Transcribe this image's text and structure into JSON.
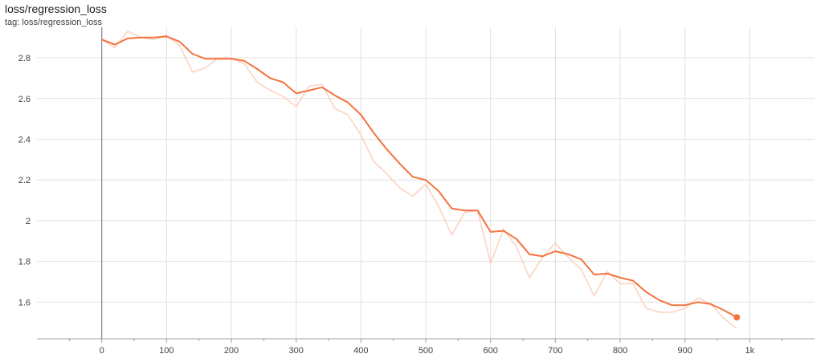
{
  "header": {
    "title": "loss/regression_loss",
    "tag": "tag: loss/regression_loss"
  },
  "colors": {
    "smoothed": "#f4733e",
    "raw": "#fbd3c3",
    "grid": "#e0e0e0",
    "axis": "#9e9e9e",
    "zero_line": "#888888"
  },
  "chart_data": {
    "type": "line",
    "title": "loss/regression_loss",
    "xlabel": "",
    "ylabel": "",
    "xlim": [
      -100,
      1100
    ],
    "ylim": [
      1.42,
      2.95
    ],
    "x_ticks": [
      0,
      100,
      200,
      300,
      400,
      500,
      600,
      700,
      800,
      900,
      1000
    ],
    "x_tick_labels": [
      "0",
      "100",
      "200",
      "300",
      "400",
      "500",
      "600",
      "700",
      "800",
      "900",
      "1k"
    ],
    "y_ticks": [
      1.6,
      1.8,
      2.0,
      2.2,
      2.4,
      2.6,
      2.8
    ],
    "y_tick_labels": [
      "1.6",
      "1.8",
      "2",
      "2.2",
      "2.4",
      "2.6",
      "2.8"
    ],
    "grid": true,
    "series": [
      {
        "role": "raw",
        "x": [
          0,
          20,
          40,
          60,
          80,
          100,
          120,
          140,
          160,
          180,
          200,
          220,
          240,
          260,
          280,
          300,
          320,
          340,
          360,
          380,
          400,
          420,
          440,
          460,
          480,
          500,
          520,
          540,
          560,
          580,
          600,
          620,
          640,
          660,
          680,
          700,
          720,
          740,
          760,
          780,
          800,
          820,
          840,
          860,
          880,
          900,
          920,
          940,
          960,
          980
        ],
        "values": [
          2.89,
          2.85,
          2.93,
          2.9,
          2.89,
          2.91,
          2.86,
          2.73,
          2.75,
          2.8,
          2.8,
          2.77,
          2.68,
          2.64,
          2.61,
          2.56,
          2.66,
          2.67,
          2.55,
          2.52,
          2.42,
          2.29,
          2.23,
          2.16,
          2.12,
          2.18,
          2.07,
          1.93,
          2.04,
          2.05,
          1.79,
          1.96,
          1.87,
          1.72,
          1.82,
          1.89,
          1.82,
          1.76,
          1.63,
          1.75,
          1.69,
          1.69,
          1.57,
          1.55,
          1.55,
          1.57,
          1.62,
          1.59,
          1.52,
          1.47
        ]
      },
      {
        "role": "smoothed",
        "x": [
          0,
          20,
          40,
          60,
          80,
          100,
          120,
          140,
          160,
          180,
          200,
          220,
          240,
          260,
          280,
          300,
          320,
          340,
          360,
          380,
          400,
          420,
          440,
          460,
          480,
          500,
          520,
          540,
          560,
          580,
          600,
          620,
          640,
          660,
          680,
          700,
          720,
          740,
          760,
          780,
          800,
          820,
          840,
          860,
          880,
          900,
          920,
          940,
          960,
          980
        ],
        "values": [
          2.89,
          2.865,
          2.895,
          2.9,
          2.9,
          2.905,
          2.88,
          2.82,
          2.795,
          2.795,
          2.795,
          2.785,
          2.745,
          2.7,
          2.68,
          2.625,
          2.64,
          2.655,
          2.615,
          2.58,
          2.52,
          2.43,
          2.35,
          2.28,
          2.215,
          2.2,
          2.145,
          2.06,
          2.05,
          2.05,
          1.945,
          1.95,
          1.91,
          1.835,
          1.825,
          1.85,
          1.835,
          1.81,
          1.735,
          1.74,
          1.72,
          1.705,
          1.65,
          1.61,
          1.585,
          1.585,
          1.6,
          1.59,
          1.56,
          1.525
        ]
      }
    ]
  }
}
